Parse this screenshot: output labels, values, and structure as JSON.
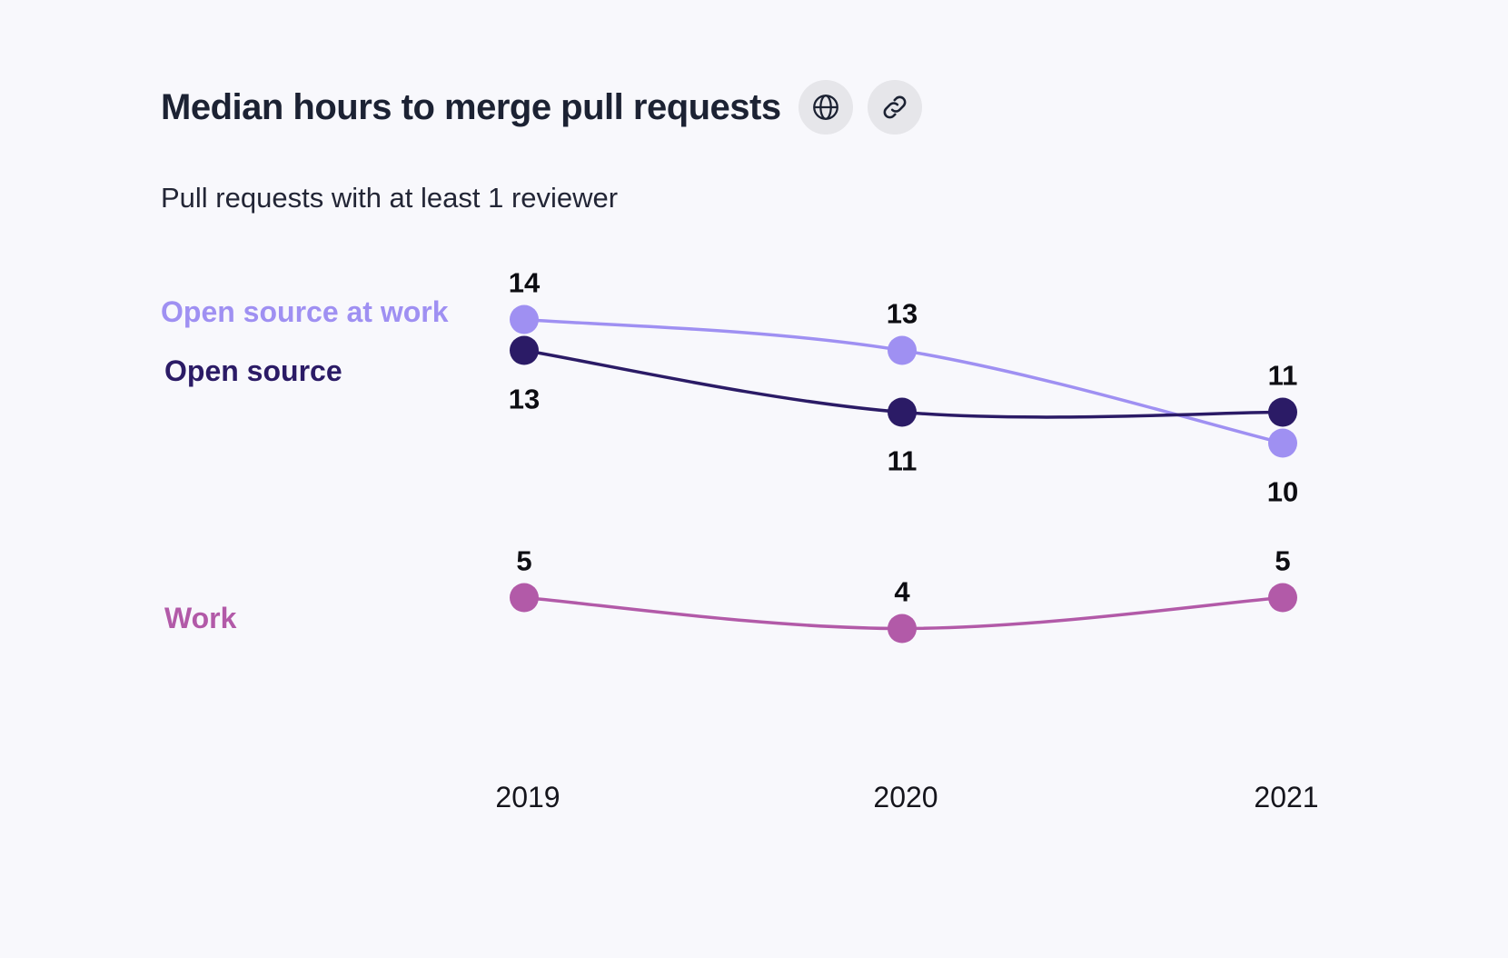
{
  "header": {
    "title": "Median hours to merge pull requests",
    "subtitle": "Pull requests with at least 1 reviewer",
    "icons": [
      "globe-icon",
      "link-icon"
    ]
  },
  "chart_data": {
    "type": "line",
    "title": "Median hours to merge pull requests",
    "subtitle": "Pull requests with at least 1 reviewer",
    "categories": [
      "2019",
      "2020",
      "2021"
    ],
    "xlabel": "",
    "ylabel": "",
    "grid": false,
    "legend": "direct labels at left of lines",
    "series": [
      {
        "name": "Open source at work",
        "values": [
          14,
          13,
          10
        ],
        "color": "#9f90f2"
      },
      {
        "name": "Open source",
        "values": [
          13,
          11,
          11
        ],
        "color": "#2b1b66"
      },
      {
        "name": "Work",
        "values": [
          5,
          4,
          5
        ],
        "color": "#b25aa8"
      }
    ],
    "data_labels": {
      "Open source at work": [
        "14",
        "13",
        "10"
      ],
      "Open source": [
        "13",
        "11",
        "11"
      ],
      "Work": [
        "5",
        "4",
        "5"
      ]
    }
  }
}
